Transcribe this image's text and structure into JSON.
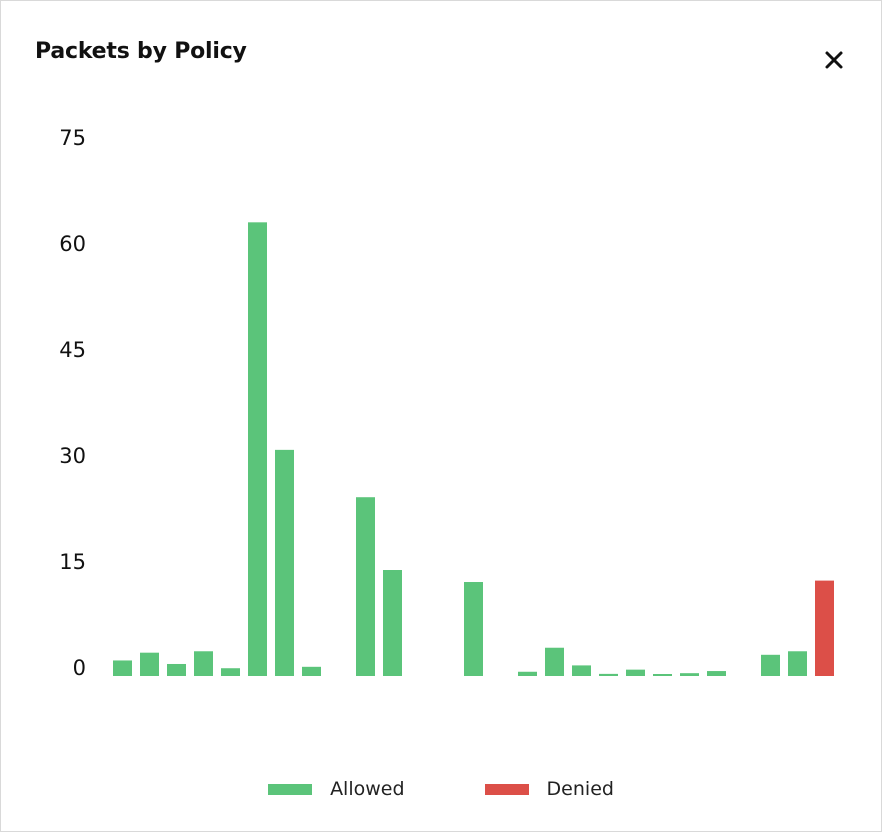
{
  "panel": {
    "title": "Packets by Policy",
    "close_icon": "close-icon"
  },
  "colors": {
    "allowed": "#5bc47a",
    "denied": "#dc4f48"
  },
  "chart_data": {
    "type": "bar",
    "title": "Packets by Policy",
    "xlabel": "",
    "ylabel": "",
    "ylim": [
      0,
      75
    ],
    "yticks": [
      "75",
      "60",
      "45",
      "30",
      "15",
      "0"
    ],
    "grid": false,
    "legend_position": "bottom",
    "series": [
      {
        "name": "Allowed",
        "color": "#5bc47a",
        "values": [
          2.2,
          3.3,
          1.7,
          3.5,
          1.1,
          64.2,
          32.0,
          1.3,
          null,
          25.3,
          15.0,
          null,
          null,
          13.3,
          null,
          0.6,
          4.0,
          1.5,
          0.3,
          0.9,
          0.2,
          0.4,
          0.7,
          null,
          3.0,
          3.5,
          null
        ]
      },
      {
        "name": "Denied",
        "color": "#dc4f48",
        "values": [
          null,
          null,
          null,
          null,
          null,
          null,
          null,
          null,
          null,
          null,
          null,
          null,
          null,
          null,
          null,
          null,
          null,
          null,
          null,
          null,
          null,
          null,
          null,
          null,
          null,
          null,
          13.5
        ]
      }
    ]
  },
  "legend": {
    "items": [
      {
        "label": "Allowed"
      },
      {
        "label": "Denied"
      }
    ]
  }
}
